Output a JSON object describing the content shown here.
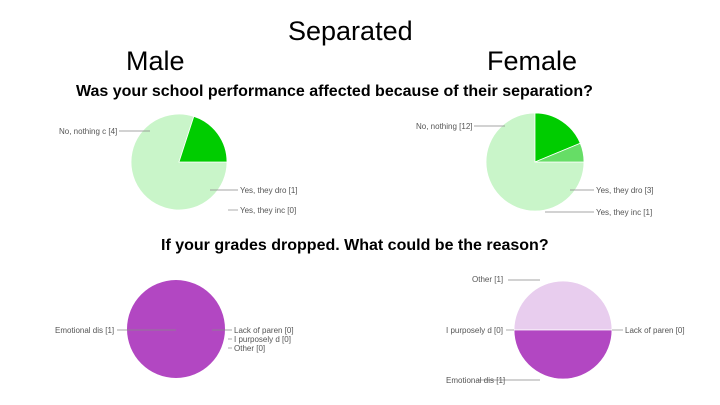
{
  "title": "Separated",
  "male_label": "Male",
  "female_label": "Female",
  "question_1": "Was your school performance affected because of their separation?",
  "question_2": "If your grades dropped. What could be the reason?",
  "chart_data": [
    {
      "type": "pie",
      "group": "Male",
      "question": "Was your school performance affected because of their separation?",
      "slices": [
        {
          "label": "No, nothing c",
          "value": 4,
          "color": "#c9f5c9"
        },
        {
          "label": "Yes, they dro",
          "value": 1,
          "color": "#00cc00"
        },
        {
          "label": "Yes, they inc",
          "value": 0,
          "color": "#66dd66"
        }
      ]
    },
    {
      "type": "pie",
      "group": "Female",
      "question": "Was your school performance affected because of their separation?",
      "slices": [
        {
          "label": "No, nothing",
          "value": 12,
          "color": "#c9f5c9"
        },
        {
          "label": "Yes, they dro",
          "value": 3,
          "color": "#00cc00"
        },
        {
          "label": "Yes, they inc",
          "value": 1,
          "color": "#66dd66"
        }
      ]
    },
    {
      "type": "pie",
      "group": "Male",
      "question": "If your grades dropped. What could be the reason?",
      "slices": [
        {
          "label": "Emotional dis",
          "value": 1,
          "color": "#b247c2"
        },
        {
          "label": "Lack of paren",
          "value": 0,
          "color": "#c77fd3"
        },
        {
          "label": "I purposely d",
          "value": 0,
          "color": "#d9a6e0"
        },
        {
          "label": "Other",
          "value": 0,
          "color": "#ebcfee"
        }
      ]
    },
    {
      "type": "pie",
      "group": "Female",
      "question": "If your grades dropped. What could be the reason?",
      "slices": [
        {
          "label": "Other",
          "value": 1,
          "color": "#e8cdee"
        },
        {
          "label": "Emotional dis",
          "value": 1,
          "color": "#b247c2"
        },
        {
          "label": "Lack of paren",
          "value": 0,
          "color": "#c77fd3"
        },
        {
          "label": "I purposely d",
          "value": 0,
          "color": "#d9a6e0"
        }
      ]
    }
  ]
}
